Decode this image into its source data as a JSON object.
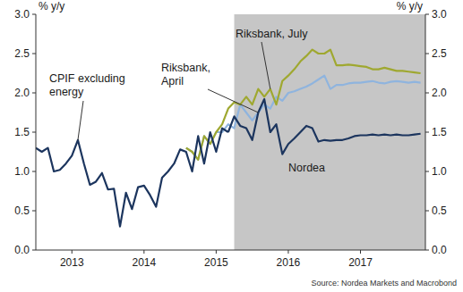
{
  "chart_data": {
    "type": "line",
    "y_label": "% y/y",
    "y2_label": "% y/y",
    "source": "Source: Nordea Markets and Macrobond",
    "shaded_from": 2015.75,
    "grid": false,
    "xlim": [
      2013,
      2018.4
    ],
    "xticks": [
      {
        "value": 2013.5,
        "label": "2013"
      },
      {
        "value": 2014.5,
        "label": "2014"
      },
      {
        "value": 2015.5,
        "label": "2015"
      },
      {
        "value": 2016.5,
        "label": "2016"
      },
      {
        "value": 2017.5,
        "label": "2017"
      }
    ],
    "ylim": [
      0,
      3
    ],
    "yticks": [
      {
        "value": 0,
        "label": "0.0"
      },
      0.5,
      {
        "value": 1,
        "label": "1.0"
      },
      1.5,
      {
        "value": 2,
        "label": "2.0"
      },
      2.5,
      {
        "value": 3,
        "label": "3.0"
      }
    ],
    "y2lim": [
      0,
      3
    ],
    "y2ticks": [
      {
        "value": 0,
        "label": "0.0"
      },
      0.5,
      {
        "value": 1,
        "label": "1.0"
      },
      1.5,
      {
        "value": 2,
        "label": "2.0"
      },
      2.5,
      {
        "value": 3,
        "label": "3.0"
      }
    ],
    "series": [
      {
        "name": "CPIF excluding energy",
        "color": "#1c355e",
        "line_style": "solid",
        "x": [
          2013,
          2013.083,
          2013.167,
          2013.25,
          2013.333,
          2013.417,
          2013.5,
          2013.583,
          2013.667,
          2013.75,
          2013.833,
          2013.917,
          2014,
          2014.083,
          2014.167,
          2014.25,
          2014.333,
          2014.417,
          2014.5,
          2014.583,
          2014.667,
          2014.75,
          2014.833,
          2014.917,
          2015,
          2015.083,
          2015.167,
          2015.25,
          2015.333,
          2015.417,
          2015.5,
          2015.583,
          2015.667
        ],
        "values": [
          1.3,
          1.25,
          1.3,
          1.0,
          1.02,
          1.1,
          1.2,
          1.4,
          1.1,
          0.83,
          0.87,
          0.98,
          0.77,
          0.78,
          0.3,
          0.73,
          0.52,
          0.8,
          0.82,
          0.7,
          0.55,
          0.92,
          1.0,
          1.1,
          1.28,
          1.25,
          1.0,
          1.45,
          1.1,
          1.5,
          1.25,
          1.55,
          1.5
        ]
      },
      {
        "name": "Nordea",
        "color": "#1c355e",
        "line_style": "solid",
        "x": [
          2015.667,
          2015.75,
          2015.833,
          2015.917,
          2016,
          2016.083,
          2016.167,
          2016.25,
          2016.333,
          2016.417,
          2016.5,
          2016.583,
          2016.667,
          2016.75,
          2016.833,
          2016.917,
          2017,
          2017.083,
          2017.167,
          2017.25,
          2017.333,
          2017.417,
          2017.5,
          2017.583,
          2017.667,
          2017.75,
          2017.833,
          2017.917,
          2018,
          2018.083,
          2018.167,
          2018.25,
          2018.333
        ],
        "values": [
          1.5,
          1.7,
          1.58,
          1.55,
          1.4,
          1.75,
          1.92,
          1.5,
          1.6,
          1.22,
          1.35,
          1.42,
          1.5,
          1.58,
          1.55,
          1.38,
          1.4,
          1.39,
          1.4,
          1.4,
          1.42,
          1.45,
          1.46,
          1.46,
          1.47,
          1.46,
          1.47,
          1.46,
          1.47,
          1.46,
          1.46,
          1.47,
          1.48
        ]
      },
      {
        "name": "Riksbank, April",
        "color": "#8fb4de",
        "line_style": "solid",
        "x": [
          2015.083,
          2015.167,
          2015.25,
          2015.333,
          2015.417,
          2015.5,
          2015.583,
          2015.667,
          2015.75,
          2015.833,
          2015.917,
          2016,
          2016.083,
          2016.167,
          2016.25,
          2016.333,
          2016.417,
          2016.5,
          2016.583,
          2016.667,
          2016.75,
          2016.833,
          2016.917,
          2017,
          2017.083,
          2017.167,
          2017.25,
          2017.333,
          2017.417,
          2017.5,
          2017.583,
          2017.667,
          2017.75,
          2017.833,
          2017.917,
          2018,
          2018.083,
          2018.167,
          2018.25,
          2018.333
        ],
        "values": [
          1.3,
          1.25,
          1.15,
          1.45,
          1.35,
          1.5,
          1.5,
          1.6,
          1.55,
          1.85,
          1.75,
          1.65,
          1.75,
          1.85,
          1.8,
          1.95,
          1.9,
          2.0,
          2.02,
          2.05,
          2.08,
          2.12,
          2.17,
          2.22,
          2.05,
          2.1,
          2.1,
          2.12,
          2.13,
          2.13,
          2.14,
          2.15,
          2.13,
          2.12,
          2.14,
          2.15,
          2.14,
          2.13,
          2.14,
          2.13
        ]
      },
      {
        "name": "Riksbank, July",
        "color": "#9fa830",
        "line_style": "solid",
        "x": [
          2015.083,
          2015.167,
          2015.25,
          2015.333,
          2015.417,
          2015.5,
          2015.583,
          2015.667,
          2015.75,
          2015.833,
          2015.917,
          2016,
          2016.083,
          2016.167,
          2016.25,
          2016.333,
          2016.417,
          2016.5,
          2016.583,
          2016.667,
          2016.75,
          2016.833,
          2016.917,
          2017,
          2017.083,
          2017.167,
          2017.25,
          2017.333,
          2017.417,
          2017.5,
          2017.583,
          2017.667,
          2017.75,
          2017.833,
          2017.917,
          2018,
          2018.083,
          2018.167,
          2018.25,
          2018.333
        ],
        "values": [
          1.3,
          1.25,
          1.15,
          1.45,
          1.35,
          1.5,
          1.6,
          1.8,
          1.88,
          1.85,
          1.95,
          1.85,
          2.05,
          1.95,
          2.05,
          1.85,
          2.15,
          2.22,
          2.3,
          2.4,
          2.47,
          2.55,
          2.5,
          2.5,
          2.55,
          2.35,
          2.35,
          2.36,
          2.35,
          2.34,
          2.33,
          2.3,
          2.3,
          2.32,
          2.3,
          2.28,
          2.28,
          2.27,
          2.26,
          2.25
        ]
      }
    ]
  }
}
